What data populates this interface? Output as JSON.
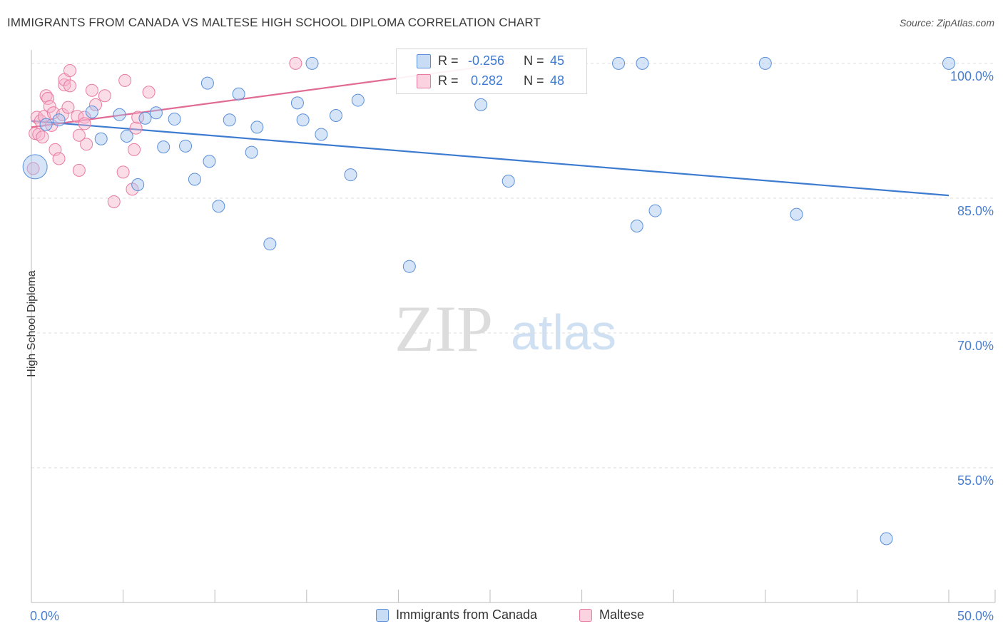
{
  "title": "IMMIGRANTS FROM CANADA VS MALTESE HIGH SCHOOL DIPLOMA CORRELATION CHART",
  "source": "Source: ZipAtlas.com",
  "watermark": {
    "zip": "ZIP",
    "atlas": "atlas"
  },
  "colors": {
    "canada": "#5b8fd9",
    "canada_fill": "rgba(164,196,238,0.45)",
    "canada_line": "#3d7bd1",
    "maltese": "#e87ca0",
    "maltese_fill": "rgba(246,180,204,0.45)",
    "maltese_line": "#e06b94",
    "tick_label": "#4a7fcf"
  },
  "stats": {
    "canada": {
      "r_label": "R =",
      "r_value": "-0.256",
      "n_label": "N =",
      "n_value": "45"
    },
    "maltese": {
      "r_label": "R =",
      "r_value": "0.282",
      "n_label": "N =",
      "n_value": "48"
    }
  },
  "chart_data": {
    "type": "scatter",
    "title": "IMMIGRANTS FROM CANADA VS MALTESE HIGH SCHOOL DIPLOMA CORRELATION CHART",
    "xlabel": "",
    "ylabel": "High School Diploma",
    "xlim": [
      0,
      50
    ],
    "ylim": [
      40,
      101.5
    ],
    "x_tick_labels": [
      "0.0%",
      "50.0%"
    ],
    "y_ticks": [
      55,
      70,
      85,
      100
    ],
    "y_tick_labels": [
      "55.0%",
      "70.0%",
      "85.0%",
      "100.0%"
    ],
    "grid": true,
    "legend_position": "bottom-center",
    "series": [
      {
        "name": "Immigrants from Canada",
        "trend": {
          "x": [
            0,
            50
          ],
          "y": [
            93.6,
            85.3
          ]
        },
        "points": [
          {
            "x": 0.2,
            "y": 88.5,
            "big": true
          },
          {
            "x": 0.8,
            "y": 93.2
          },
          {
            "x": 1.5,
            "y": 93.7
          },
          {
            "x": 3.3,
            "y": 94.6
          },
          {
            "x": 3.8,
            "y": 91.6
          },
          {
            "x": 4.8,
            "y": 94.3
          },
          {
            "x": 5.2,
            "y": 91.9
          },
          {
            "x": 5.8,
            "y": 86.5
          },
          {
            "x": 6.2,
            "y": 93.9
          },
          {
            "x": 6.8,
            "y": 94.5
          },
          {
            "x": 7.2,
            "y": 90.7
          },
          {
            "x": 7.8,
            "y": 93.8
          },
          {
            "x": 8.4,
            "y": 90.8
          },
          {
            "x": 8.9,
            "y": 87.1
          },
          {
            "x": 9.6,
            "y": 97.8
          },
          {
            "x": 9.7,
            "y": 89.1
          },
          {
            "x": 10.2,
            "y": 84.1
          },
          {
            "x": 10.8,
            "y": 93.7
          },
          {
            "x": 11.3,
            "y": 96.6
          },
          {
            "x": 12.0,
            "y": 90.1
          },
          {
            "x": 12.3,
            "y": 92.9
          },
          {
            "x": 13.0,
            "y": 79.9
          },
          {
            "x": 14.5,
            "y": 95.6
          },
          {
            "x": 14.8,
            "y": 93.7
          },
          {
            "x": 15.3,
            "y": 100.0
          },
          {
            "x": 15.8,
            "y": 92.1
          },
          {
            "x": 16.6,
            "y": 94.2
          },
          {
            "x": 17.4,
            "y": 87.6
          },
          {
            "x": 17.8,
            "y": 95.9
          },
          {
            "x": 20.6,
            "y": 77.4
          },
          {
            "x": 24.5,
            "y": 95.4
          },
          {
            "x": 26.0,
            "y": 86.9
          },
          {
            "x": 32.0,
            "y": 100.0
          },
          {
            "x": 33.0,
            "y": 81.9
          },
          {
            "x": 33.3,
            "y": 100.0
          },
          {
            "x": 34.0,
            "y": 83.6
          },
          {
            "x": 40.0,
            "y": 100.0
          },
          {
            "x": 41.7,
            "y": 83.2
          },
          {
            "x": 46.6,
            "y": 47.1
          },
          {
            "x": 50.0,
            "y": 100.0
          }
        ]
      },
      {
        "name": "Maltese",
        "trend": {
          "x": [
            0,
            26
          ],
          "y": [
            92.9,
            100.0
          ]
        },
        "points": [
          {
            "x": 0.1,
            "y": 88.3
          },
          {
            "x": 0.2,
            "y": 92.2
          },
          {
            "x": 0.3,
            "y": 94.0
          },
          {
            "x": 0.4,
            "y": 92.1
          },
          {
            "x": 0.5,
            "y": 93.6
          },
          {
            "x": 0.6,
            "y": 91.8
          },
          {
            "x": 0.7,
            "y": 94.1
          },
          {
            "x": 0.8,
            "y": 96.4
          },
          {
            "x": 0.9,
            "y": 96.1
          },
          {
            "x": 1.0,
            "y": 95.2
          },
          {
            "x": 1.1,
            "y": 93.1
          },
          {
            "x": 1.2,
            "y": 94.5
          },
          {
            "x": 1.3,
            "y": 90.4
          },
          {
            "x": 1.5,
            "y": 89.4
          },
          {
            "x": 1.7,
            "y": 94.3
          },
          {
            "x": 1.8,
            "y": 97.6
          },
          {
            "x": 1.8,
            "y": 98.2
          },
          {
            "x": 2.0,
            "y": 95.1
          },
          {
            "x": 2.1,
            "y": 97.5
          },
          {
            "x": 2.1,
            "y": 99.2
          },
          {
            "x": 2.5,
            "y": 94.1
          },
          {
            "x": 2.6,
            "y": 88.1
          },
          {
            "x": 2.6,
            "y": 92.0
          },
          {
            "x": 2.9,
            "y": 94.0
          },
          {
            "x": 2.9,
            "y": 93.3
          },
          {
            "x": 3.0,
            "y": 91.0
          },
          {
            "x": 3.3,
            "y": 97.0
          },
          {
            "x": 3.5,
            "y": 95.4
          },
          {
            "x": 4.0,
            "y": 96.4
          },
          {
            "x": 4.5,
            "y": 84.6
          },
          {
            "x": 5.0,
            "y": 87.9
          },
          {
            "x": 5.1,
            "y": 98.1
          },
          {
            "x": 5.5,
            "y": 86.0
          },
          {
            "x": 5.6,
            "y": 90.4
          },
          {
            "x": 5.7,
            "y": 92.8
          },
          {
            "x": 5.8,
            "y": 94.0
          },
          {
            "x": 6.4,
            "y": 96.8
          },
          {
            "x": 14.4,
            "y": 100.0
          },
          {
            "x": 25.1,
            "y": 100.0
          }
        ]
      }
    ]
  }
}
